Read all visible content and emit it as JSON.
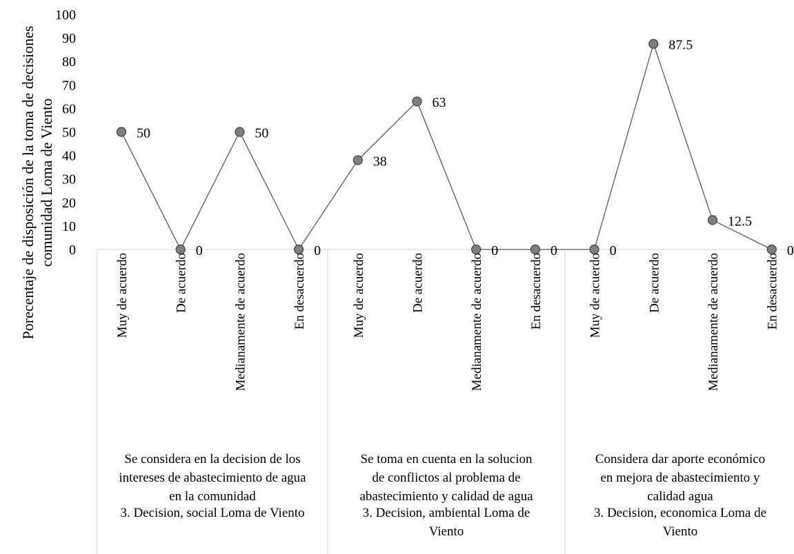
{
  "chart_data": {
    "type": "line",
    "ylabel_lines": [
      "Porecentaje de disposición de la toma de decisiones",
      "comunidad Loma de Viento"
    ],
    "ylim": [
      0,
      100
    ],
    "yticks": [
      0,
      10,
      20,
      30,
      40,
      50,
      60,
      70,
      80,
      90,
      100
    ],
    "grid": false,
    "groups": [
      {
        "category": "3. Decision, social Loma de Viento",
        "category_lines": [
          "3. Decision, social Loma de Viento"
        ],
        "question_lines": [
          "Se considera en la decision de los",
          "intereses de abastecimiento de agua",
          "en la comunidad"
        ],
        "categories": [
          "Muy de acuerdo",
          "De acuerdo",
          "Medianamente de acuerdo",
          "En desacuerdo"
        ],
        "values": [
          50,
          0,
          50,
          0
        ],
        "labels": [
          "50",
          "0",
          "50",
          "0"
        ]
      },
      {
        "category": "3. Decision, ambiental Loma de Viento",
        "category_lines": [
          "3. Decision, ambiental Loma de",
          "Viento"
        ],
        "question_lines": [
          "Se toma en cuenta en la solucion",
          "de conflictos al problema de",
          "abastecimiento y calidad de agua"
        ],
        "categories": [
          "Muy de acuerdo",
          "De acuerdo",
          "Medianamente de acuerdo",
          "En desacuerdo"
        ],
        "values": [
          38,
          63,
          0,
          0
        ],
        "labels": [
          "38",
          "63",
          "0",
          "0"
        ]
      },
      {
        "category": "3. Decision, economica Loma de Viento",
        "category_lines": [
          "3. Decision, economica  Loma de",
          "Viento"
        ],
        "question_lines": [
          "Considera dar aporte económico",
          "en mejora de abastecimiento  y",
          "calidad agua"
        ],
        "categories": [
          "Muy de acuerdo",
          "De acuerdo",
          "Medianamente de acuerdo",
          "En desacuerdo"
        ],
        "values": [
          0,
          87.5,
          12.5,
          0
        ],
        "labels": [
          "0",
          "87.5",
          "12.5",
          "0"
        ]
      }
    ],
    "colors": {
      "line": "#595959",
      "marker_fill": "#7f7f7f",
      "marker_stroke": "#404040",
      "axis": "#d9d9d9",
      "text": "#000000"
    }
  }
}
